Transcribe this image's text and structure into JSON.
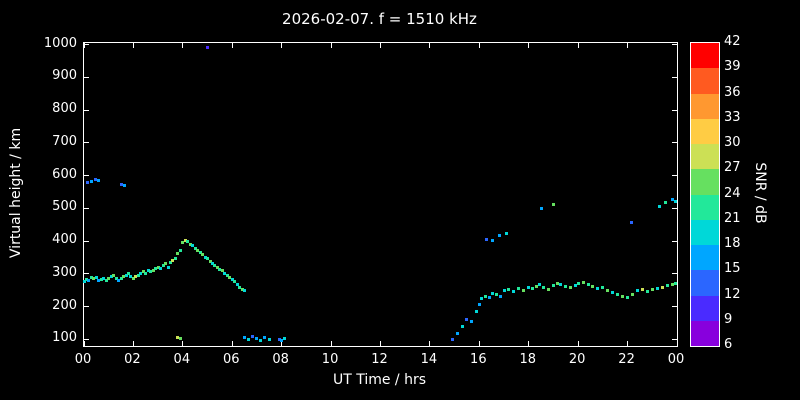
{
  "chart_data": {
    "type": "scatter",
    "title": "2026-02-07. f = 1510 kHz",
    "xlabel": "UT Time / hrs",
    "ylabel": "Virtual height / km",
    "xlim": [
      0,
      24
    ],
    "ylim": [
      80,
      1005
    ],
    "grid": false,
    "x_tick_values": [
      0,
      2,
      4,
      6,
      8,
      10,
      12,
      14,
      16,
      18,
      20,
      22,
      24
    ],
    "x_tick_labels": [
      "00",
      "02",
      "04",
      "06",
      "08",
      "10",
      "12",
      "14",
      "16",
      "18",
      "20",
      "22",
      "00"
    ],
    "y_ticks": [
      100,
      200,
      300,
      400,
      500,
      600,
      700,
      800,
      900,
      1000
    ],
    "colorbar": {
      "label": "SNR / dB",
      "min": 6,
      "max": 42,
      "step": 3,
      "bands": [
        {
          "min": 6,
          "color": "#8800DD"
        },
        {
          "min": 9,
          "color": "#4A2BFF"
        },
        {
          "min": 12,
          "color": "#2B66FF"
        },
        {
          "min": 15,
          "color": "#00A6FF"
        },
        {
          "min": 18,
          "color": "#00D8D8"
        },
        {
          "min": 21,
          "color": "#22E89A"
        },
        {
          "min": 24,
          "color": "#66E060"
        },
        {
          "min": 27,
          "color": "#CCE055"
        },
        {
          "min": 30,
          "color": "#FFCC44"
        },
        {
          "min": 33,
          "color": "#FF9830"
        },
        {
          "min": 36,
          "color": "#FF5A20"
        },
        {
          "min": 39,
          "color": "#FF0000"
        }
      ]
    },
    "points": [
      [
        0.0,
        278,
        18
      ],
      [
        0.1,
        283,
        21
      ],
      [
        0.2,
        280,
        16
      ],
      [
        0.3,
        290,
        23
      ],
      [
        0.4,
        286,
        25
      ],
      [
        0.5,
        289,
        19
      ],
      [
        0.6,
        281,
        16
      ],
      [
        0.7,
        283,
        22
      ],
      [
        0.8,
        286,
        18
      ],
      [
        0.9,
        281,
        21
      ],
      [
        1.0,
        286,
        24
      ],
      [
        1.1,
        291,
        19
      ],
      [
        1.2,
        296,
        26
      ],
      [
        1.3,
        286,
        21
      ],
      [
        1.4,
        281,
        17
      ],
      [
        1.5,
        286,
        22
      ],
      [
        1.6,
        291,
        25
      ],
      [
        1.7,
        296,
        20
      ],
      [
        1.8,
        301,
        23
      ],
      [
        1.9,
        291,
        18
      ],
      [
        2.0,
        286,
        24
      ],
      [
        2.1,
        291,
        27
      ],
      [
        2.2,
        296,
        22
      ],
      [
        2.3,
        301,
        19
      ],
      [
        2.4,
        306,
        24
      ],
      [
        2.5,
        301,
        21
      ],
      [
        2.6,
        311,
        18
      ],
      [
        2.7,
        306,
        23
      ],
      [
        2.8,
        311,
        26
      ],
      [
        2.9,
        316,
        21
      ],
      [
        3.0,
        321,
        24
      ],
      [
        3.1,
        316,
        19
      ],
      [
        3.2,
        326,
        22
      ],
      [
        3.3,
        331,
        25
      ],
      [
        3.4,
        321,
        20
      ],
      [
        3.5,
        336,
        23
      ],
      [
        3.6,
        341,
        27
      ],
      [
        3.7,
        346,
        22
      ],
      [
        3.8,
        361,
        25
      ],
      [
        3.9,
        371,
        21
      ],
      [
        4.0,
        396,
        24
      ],
      [
        4.1,
        401,
        27
      ],
      [
        4.2,
        398,
        22
      ],
      [
        4.3,
        391,
        25
      ],
      [
        4.4,
        386,
        20
      ],
      [
        4.5,
        379,
        23
      ],
      [
        4.6,
        371,
        26
      ],
      [
        4.7,
        366,
        21
      ],
      [
        4.8,
        359,
        24
      ],
      [
        4.9,
        351,
        19
      ],
      [
        5.0,
        346,
        22
      ],
      [
        5.1,
        339,
        25
      ],
      [
        5.2,
        331,
        20
      ],
      [
        5.3,
        326,
        23
      ],
      [
        5.4,
        319,
        26
      ],
      [
        5.5,
        313,
        21
      ],
      [
        5.6,
        309,
        24
      ],
      [
        5.7,
        301,
        19
      ],
      [
        5.8,
        296,
        22
      ],
      [
        5.9,
        289,
        25
      ],
      [
        6.0,
        283,
        20
      ],
      [
        6.1,
        276,
        23
      ],
      [
        6.2,
        269,
        18
      ],
      [
        6.3,
        259,
        21
      ],
      [
        6.4,
        253,
        24
      ],
      [
        6.5,
        249,
        19
      ],
      [
        0.15,
        578,
        14
      ],
      [
        0.3,
        583,
        17
      ],
      [
        0.45,
        589,
        13
      ],
      [
        0.6,
        585,
        16
      ],
      [
        1.5,
        573,
        13
      ],
      [
        1.62,
        569,
        16
      ],
      [
        5.0,
        990,
        11
      ],
      [
        3.8,
        106,
        27
      ],
      [
        3.9,
        103,
        24
      ],
      [
        6.5,
        106,
        16
      ],
      [
        6.65,
        100,
        19
      ],
      [
        6.8,
        108,
        13
      ],
      [
        7.0,
        103,
        17
      ],
      [
        7.15,
        98,
        20
      ],
      [
        7.3,
        105,
        15
      ],
      [
        7.5,
        100,
        18
      ],
      [
        7.9,
        100,
        13
      ],
      [
        8.0,
        96,
        16
      ],
      [
        8.1,
        103,
        19
      ],
      [
        14.9,
        100,
        13
      ],
      [
        15.1,
        118,
        16
      ],
      [
        15.3,
        140,
        19
      ],
      [
        15.5,
        161,
        14
      ],
      [
        15.7,
        156,
        17
      ],
      [
        15.9,
        186,
        20
      ],
      [
        16.0,
        206,
        15
      ],
      [
        16.1,
        226,
        18
      ],
      [
        16.25,
        231,
        21
      ],
      [
        16.4,
        228,
        16
      ],
      [
        16.55,
        241,
        19
      ],
      [
        16.7,
        236,
        22
      ],
      [
        16.85,
        231,
        17
      ],
      [
        16.3,
        406,
        14
      ],
      [
        16.55,
        401,
        17
      ],
      [
        16.8,
        418,
        15
      ],
      [
        17.1,
        423,
        18
      ],
      [
        18.5,
        500,
        17
      ],
      [
        19.0,
        512,
        24
      ],
      [
        22.15,
        456,
        13
      ],
      [
        23.3,
        506,
        18
      ],
      [
        23.55,
        518,
        21
      ],
      [
        23.8,
        528,
        17
      ],
      [
        23.95,
        522,
        20
      ],
      [
        17.0,
        248,
        20
      ],
      [
        17.2,
        252,
        23
      ],
      [
        17.4,
        246,
        18
      ],
      [
        17.6,
        255,
        21
      ],
      [
        17.8,
        250,
        24
      ],
      [
        18.0,
        260,
        19
      ],
      [
        18.15,
        255,
        22
      ],
      [
        18.3,
        262,
        25
      ],
      [
        18.45,
        268,
        20
      ],
      [
        18.6,
        258,
        23
      ],
      [
        18.8,
        252,
        26
      ],
      [
        19.0,
        265,
        21
      ],
      [
        19.15,
        272,
        24
      ],
      [
        19.3,
        268,
        19
      ],
      [
        19.5,
        262,
        22
      ],
      [
        19.7,
        258,
        25
      ],
      [
        19.9,
        266,
        20
      ],
      [
        20.0,
        270,
        23
      ],
      [
        20.2,
        274,
        26
      ],
      [
        20.4,
        268,
        21
      ],
      [
        20.6,
        262,
        24
      ],
      [
        20.8,
        255,
        19
      ],
      [
        21.0,
        258,
        22
      ],
      [
        21.2,
        250,
        25
      ],
      [
        21.4,
        242,
        20
      ],
      [
        21.6,
        238,
        23
      ],
      [
        21.8,
        232,
        26
      ],
      [
        22.0,
        228,
        21
      ],
      [
        22.2,
        238,
        24
      ],
      [
        22.4,
        248,
        19
      ],
      [
        22.6,
        252,
        27
      ],
      [
        22.8,
        246,
        22
      ],
      [
        23.0,
        252,
        25
      ],
      [
        23.2,
        256,
        20
      ],
      [
        23.4,
        260,
        28
      ],
      [
        23.6,
        264,
        23
      ],
      [
        23.8,
        268,
        26
      ],
      [
        23.95,
        272,
        21
      ]
    ]
  }
}
